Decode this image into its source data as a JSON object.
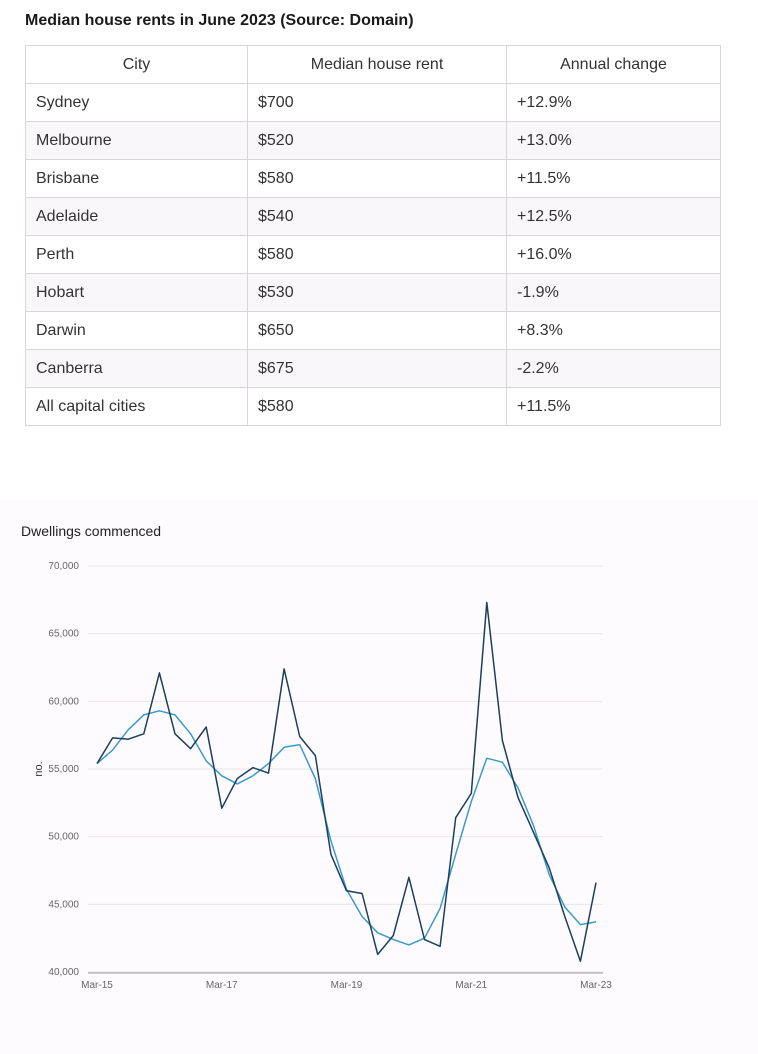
{
  "table": {
    "title": "Median house rents in June 2023 (Source: Domain)",
    "headers": [
      "City",
      "Median house rent",
      "Annual change"
    ],
    "rows": [
      [
        "Sydney",
        "$700",
        "+12.9%"
      ],
      [
        "Melbourne",
        "$520",
        "+13.0%"
      ],
      [
        "Brisbane",
        "$580",
        "+11.5%"
      ],
      [
        "Adelaide",
        "$540",
        "+12.5%"
      ],
      [
        "Perth",
        "$580",
        "+16.0%"
      ],
      [
        "Hobart",
        "$530",
        "-1.9%"
      ],
      [
        "Darwin",
        "$650",
        "+8.3%"
      ],
      [
        "Canberra",
        "$675",
        "-2.2%"
      ],
      [
        "All capital cities",
        "$580",
        "+11.5%"
      ]
    ]
  },
  "chart_data": {
    "type": "line",
    "title": "Dwellings commenced",
    "xlabel": "",
    "ylabel": "no.",
    "ylim": [
      40000,
      70000
    ],
    "yticks": [
      "40,000",
      "45,000",
      "50,000",
      "55,000",
      "60,000",
      "65,000",
      "70,000"
    ],
    "yticks_values": [
      40000,
      45000,
      50000,
      55000,
      60000,
      65000,
      70000
    ],
    "xtick_labels": [
      "Mar-15",
      "Mar-17",
      "Mar-19",
      "Mar-21",
      "Mar-23"
    ],
    "xtick_index": [
      0,
      8,
      16,
      24,
      32
    ],
    "grid": true,
    "colors": {
      "original": "#1b3f5e",
      "trend": "#3d9ac9"
    },
    "series": [
      {
        "values": [
          55400,
          57300,
          57200,
          57600,
          62100,
          57600,
          56500,
          58100,
          52100,
          54300,
          55100,
          54700,
          62400,
          57400,
          56000,
          48700,
          46000,
          45800,
          41300,
          42700,
          47000,
          42400,
          41900,
          51400,
          53200,
          67300,
          57100,
          52900,
          50300,
          47700,
          44100,
          40800,
          46600
        ]
      },
      {
        "values": [
          55400,
          56400,
          57900,
          59000,
          59300,
          59000,
          57600,
          55600,
          54500,
          53900,
          54500,
          55400,
          56600,
          56800,
          54300,
          49700,
          46100,
          44100,
          42900,
          42400,
          42000,
          42500,
          44700,
          48700,
          52600,
          55800,
          55500,
          53600,
          50800,
          47200,
          44800,
          43500,
          43700
        ]
      }
    ]
  }
}
